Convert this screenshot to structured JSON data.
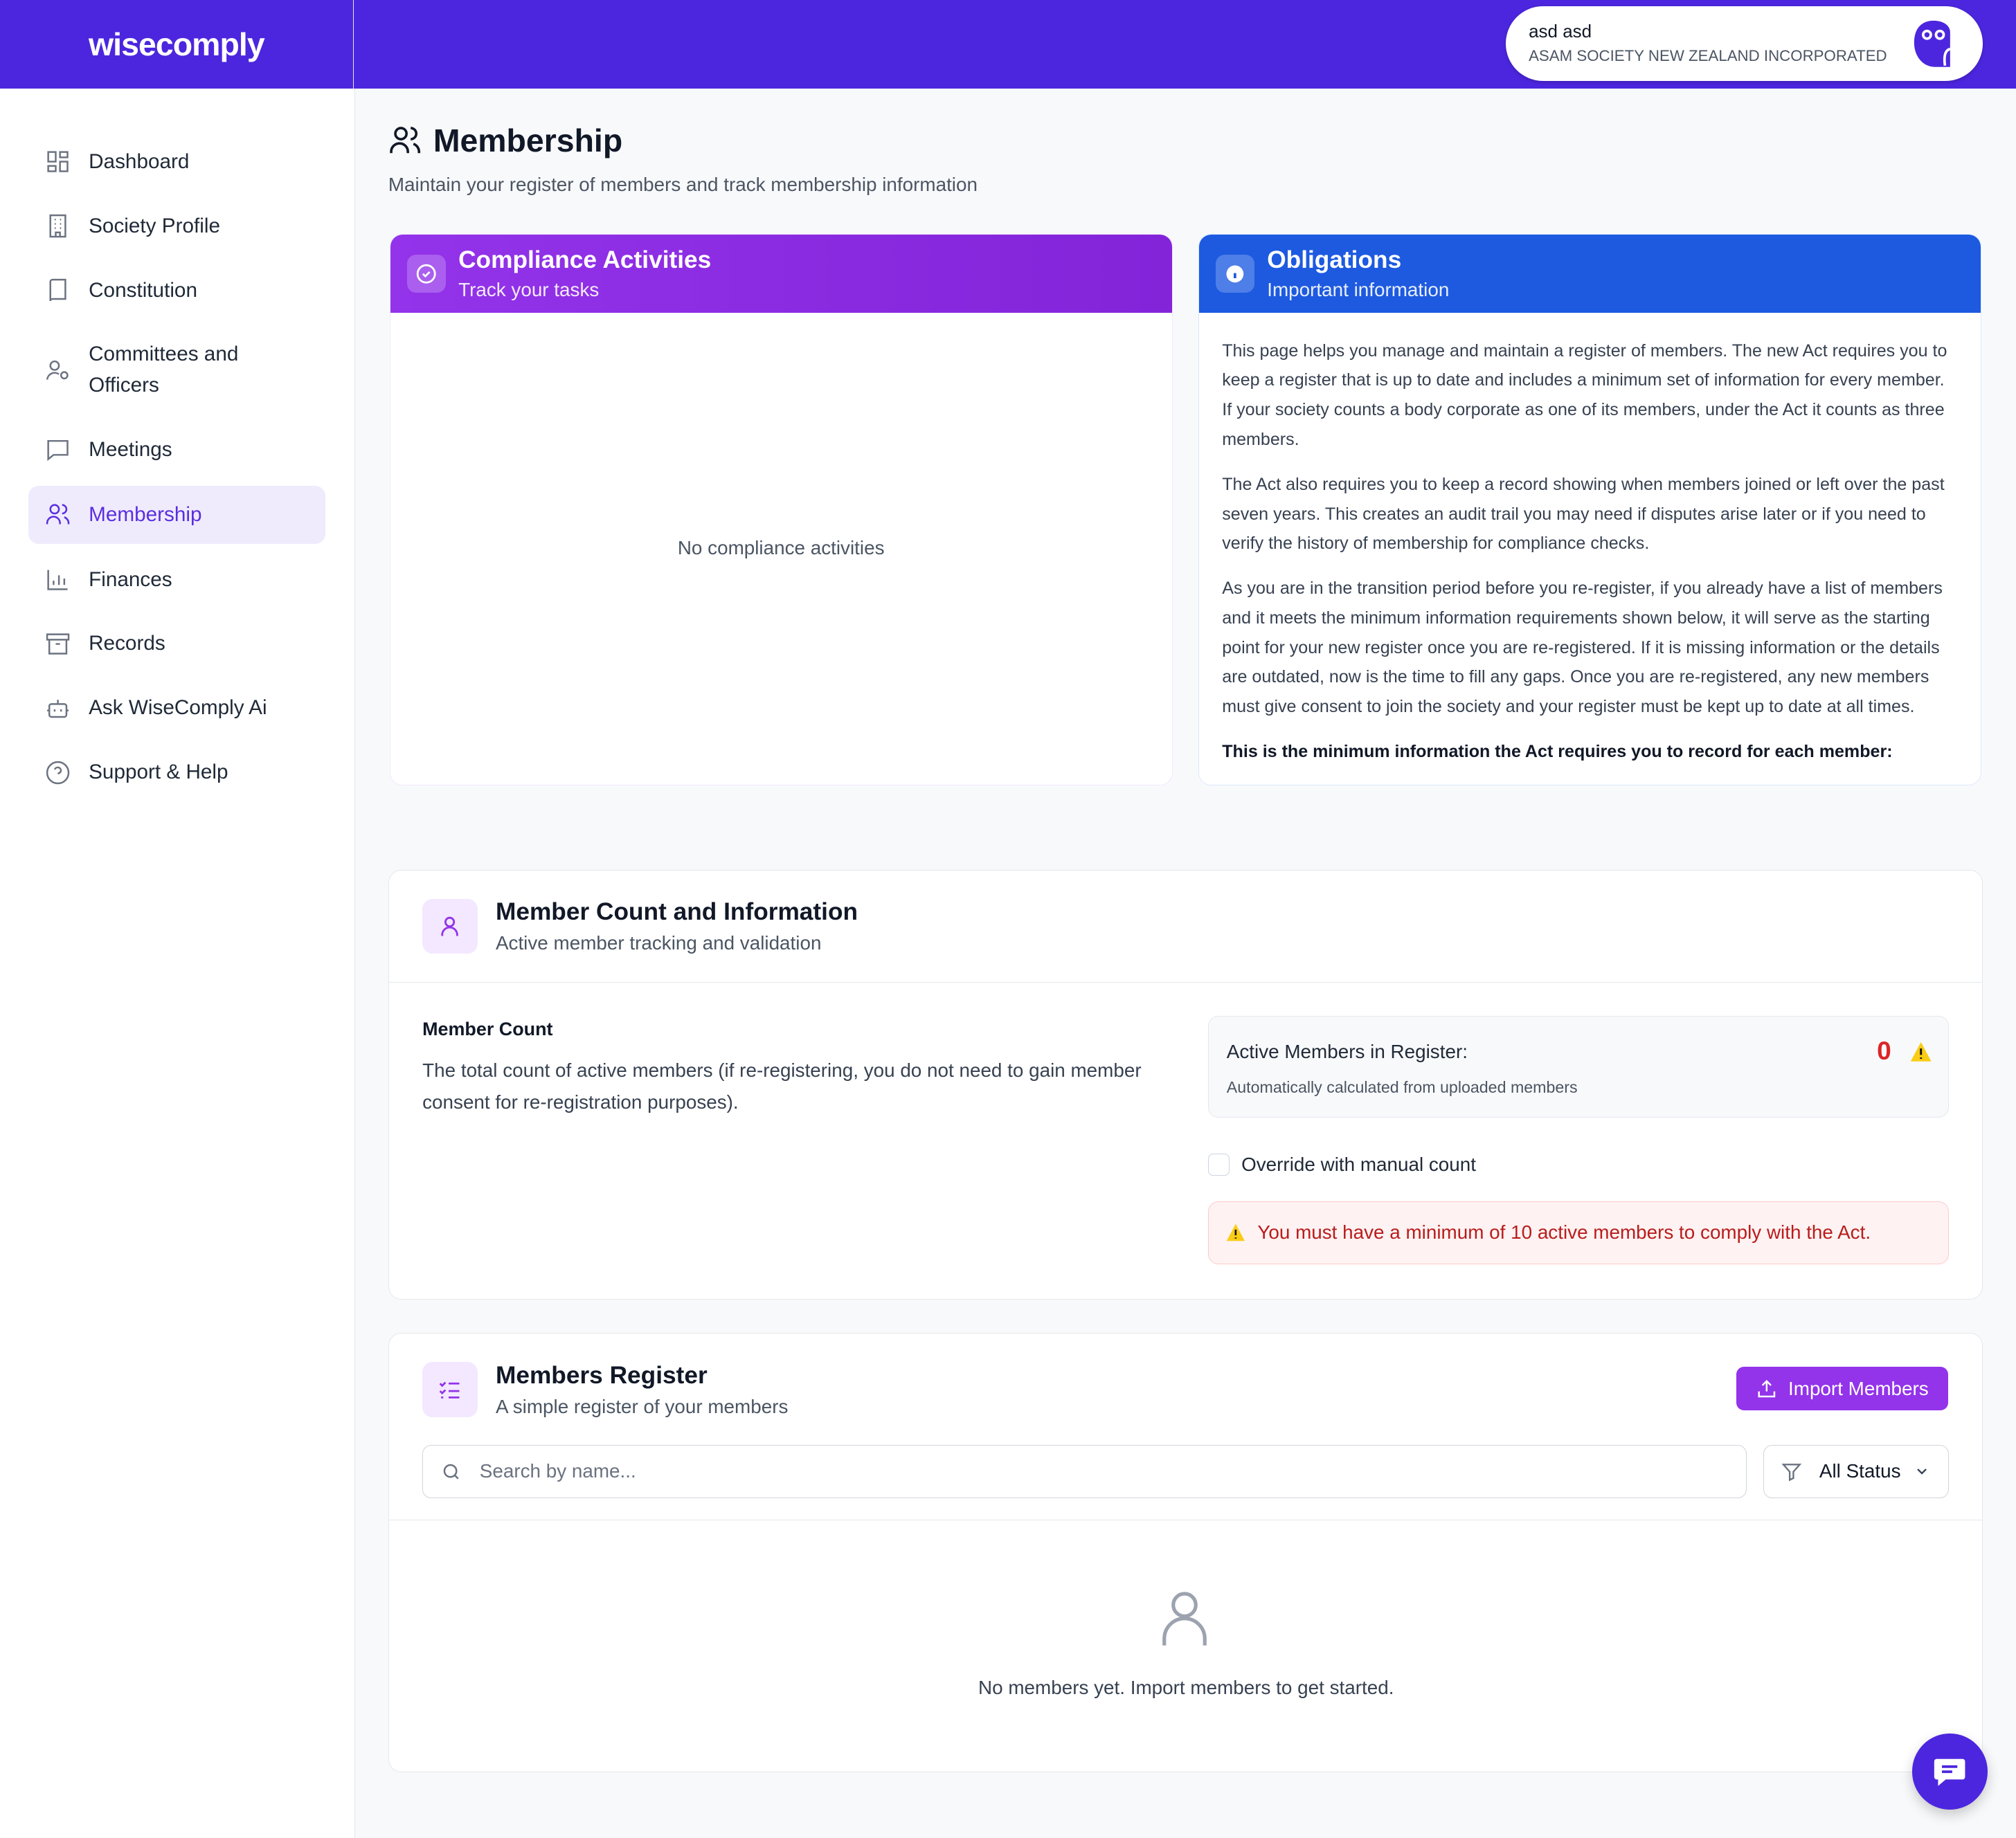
{
  "header": {
    "logo": "wisecomply",
    "user_name": "asd asd",
    "organization": "ASAM SOCIETY NEW ZEALAND INCORPORATED",
    "brand_color": "#4c26de"
  },
  "sidebar": {
    "items": [
      {
        "label": "Dashboard",
        "icon": "dashboard-icon"
      },
      {
        "label": "Society Profile",
        "icon": "building-icon"
      },
      {
        "label": "Constitution",
        "icon": "book-icon"
      },
      {
        "label": "Committees and Officers",
        "icon": "user-cog-icon"
      },
      {
        "label": "Meetings",
        "icon": "message-square-icon"
      },
      {
        "label": "Membership",
        "icon": "users-icon",
        "active": true
      },
      {
        "label": "Finances",
        "icon": "bar-chart-icon"
      },
      {
        "label": "Records",
        "icon": "archive-icon"
      },
      {
        "label": "Ask WiseComply Ai",
        "icon": "bot-icon"
      },
      {
        "label": "Support & Help",
        "icon": "help-circle-icon"
      }
    ]
  },
  "page": {
    "title": "Membership",
    "subtitle": "Maintain your register of members and track membership information"
  },
  "compliance": {
    "title": "Compliance Activities",
    "subtitle": "Track your tasks",
    "empty": "No compliance activities"
  },
  "obligations": {
    "title": "Obligations",
    "subtitle": "Important information",
    "paragraphs": [
      "This page helps you manage and maintain a register of members. The new Act requires you to keep a register that is up to date and includes a minimum set of information for every member. If your society counts a body corporate as one of its members, under the Act it counts as three members.",
      "The Act also requires you to keep a record showing when members joined or left over the past seven years. This creates an audit trail you may need if disputes arise later or if you need to verify the history of membership for compliance checks.",
      "As you are in the transition period before you re-register, if you already have a list of members and it meets the minimum information requirements shown below, it will serve as the starting point for your new register once you are re-registered. If it is missing information or the details are outdated, now is the time to fill any gaps. Once you are re-registered, any new members must give consent to join the society and your register must be kept up to date at all times."
    ],
    "bold_line": "This is the minimum information the Act requires you to record for each member:"
  },
  "member_count": {
    "title": "Member Count and Information",
    "subtitle": "Active member tracking and validation",
    "label": "Member Count",
    "description": "The total count of active members (if re-registering, you do not need to gain member consent for re-registration purposes).",
    "active_label": "Active Members in Register:",
    "active_value": "0",
    "active_note": "Automatically calculated from uploaded members",
    "override_label": "Override with manual count",
    "override_checked": false,
    "warning": "You must have a minimum of 10 active members to comply with the Act."
  },
  "register": {
    "title": "Members Register",
    "subtitle": "A simple register of your members",
    "import_label": "Import Members",
    "search_placeholder": "Search by name...",
    "status_filter": "All Status",
    "empty": "No members yet. Import members to get started."
  }
}
